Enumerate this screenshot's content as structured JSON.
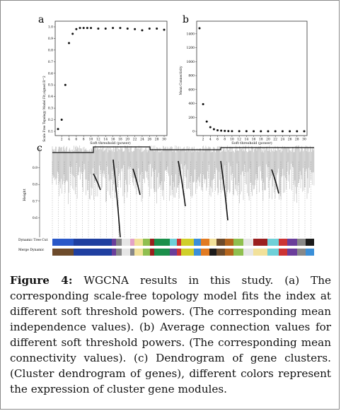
{
  "panels": {
    "a": {
      "label": "a",
      "ylabel": "Scale Free Topology Model Fit,signed R^2",
      "xlabel": "Soft threshold (power)",
      "yticks": [
        "0.1",
        "0.2",
        "0.3",
        "0.4",
        "0.5",
        "0.6",
        "0.7",
        "0.8",
        "0.9",
        "1.0"
      ],
      "xticks": [
        "2",
        "4",
        "6",
        "8",
        "10",
        "12",
        "14",
        "16",
        "18",
        "20",
        "22",
        "24",
        "26",
        "28",
        "30"
      ]
    },
    "b": {
      "label": "b",
      "ylabel": "Mean Connectivity",
      "xlabel": "Soft threshold (power)",
      "yticks": [
        "0",
        "200",
        "400",
        "600",
        "800",
        "1000",
        "1200",
        "1400"
      ],
      "xticks": [
        "2",
        "4",
        "6",
        "8",
        "10",
        "12",
        "14",
        "16",
        "18",
        "20",
        "22",
        "24",
        "26",
        "28",
        "30"
      ]
    },
    "c": {
      "label": "c",
      "ylabel": "Height",
      "yticks": [
        "0.6",
        "0.7",
        "0.8",
        "0.9"
      ],
      "bar_labels": [
        "Dynamic Tree Cut",
        "Merge Dynamic"
      ]
    }
  },
  "chart_data": [
    {
      "type": "scatter",
      "panel": "a",
      "xlabel": "Soft threshold (power)",
      "ylabel": "Scale Free Topology Model Fit,signed R^2",
      "xlim": [
        1,
        30
      ],
      "ylim": [
        0.1,
        1.0
      ],
      "x": [
        1,
        2,
        3,
        4,
        5,
        6,
        7,
        8,
        9,
        10,
        12,
        14,
        16,
        18,
        20,
        22,
        24,
        26,
        28,
        30
      ],
      "y": [
        0.12,
        0.2,
        0.5,
        0.86,
        0.94,
        0.98,
        0.99,
        0.99,
        0.99,
        0.99,
        0.985,
        0.985,
        0.99,
        0.99,
        0.985,
        0.98,
        0.97,
        0.985,
        0.985,
        0.975
      ]
    },
    {
      "type": "scatter",
      "panel": "b",
      "xlabel": "Soft threshold (power)",
      "ylabel": "Mean Connectivity",
      "xlim": [
        1,
        30
      ],
      "ylim": [
        0,
        1500
      ],
      "x": [
        1,
        2,
        3,
        4,
        5,
        6,
        7,
        8,
        9,
        10,
        12,
        14,
        16,
        18,
        20,
        22,
        24,
        26,
        28,
        30
      ],
      "y": [
        1480,
        390,
        140,
        60,
        30,
        15,
        10,
        6,
        4,
        3,
        2,
        2,
        1,
        1,
        1,
        1,
        1,
        1,
        1,
        1
      ]
    },
    {
      "type": "other",
      "panel": "c",
      "ylabel": "Height",
      "ylim": [
        0.5,
        1.0
      ]
    }
  ],
  "caption": {
    "label": "Figure 4:",
    "text": " WGCNA results in this study. (a) The corresponding scale-free topology model fits the index at different soft threshold powers. (The corresponding mean independence values). (b) Average connection values for different soft threshold powers. (The corresponding mean connectivity values). (c) Dendrogram of gene clusters. (Cluster dendrogram of genes), different colors represent the expression of cluster gene modules."
  }
}
